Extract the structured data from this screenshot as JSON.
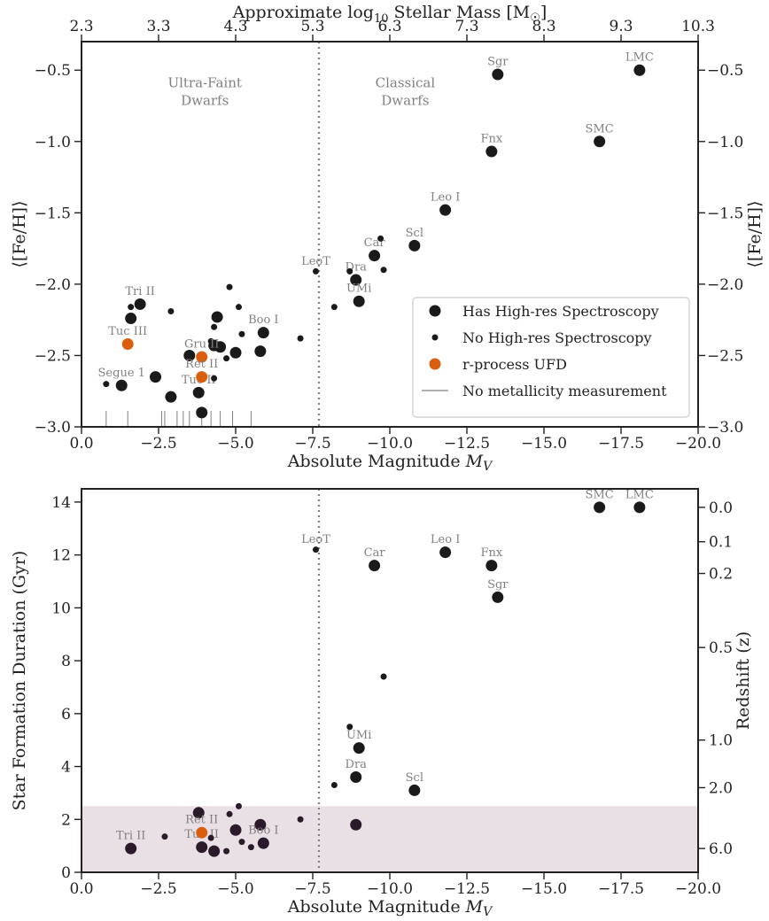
{
  "colors": {
    "big_marker": "#1a1a1a",
    "small_marker": "#1a1a1a",
    "rprocess": "#d95f0e",
    "label": "#808080",
    "divider": "#808080",
    "shade": "#e9e0e6",
    "bottom_marker_shaded": "#2a1a2a",
    "legend_line": "#808080"
  },
  "chart_data": [
    {
      "type": "scatter",
      "title": "",
      "xlabel": "Absolute Magnitude M_V",
      "ylabel": "⟨[Fe/H]⟩",
      "ylabel_right": "⟨[Fe/H]⟩",
      "top_axis_label": "Approximate log₁₀ Stellar Mass [M☉]",
      "xlim": [
        0.0,
        -20.0
      ],
      "ylim": [
        -3.0,
        -0.3
      ],
      "x_ticks": [
        0.0,
        -2.5,
        -5.0,
        -7.5,
        -10.0,
        -12.5,
        -15.0,
        -17.5,
        -20.0
      ],
      "x_tick_labels": [
        "0.0",
        "−2.5",
        "−5.0",
        "−7.5",
        "−10.0",
        "−12.5",
        "−15.0",
        "−17.5",
        "−20.0"
      ],
      "y_ticks": [
        -3.0,
        -2.5,
        -2.0,
        -1.5,
        -1.0,
        -0.5
      ],
      "y_tick_labels": [
        "−3.0",
        "−2.5",
        "−2.0",
        "−1.5",
        "−1.0",
        "−0.5"
      ],
      "top_ticks_mv": [
        0.0,
        -2.5,
        -5.0,
        -7.5,
        -10.0,
        -12.5,
        -15.0,
        -17.5,
        -20.0
      ],
      "top_tick_labels": [
        "2.3",
        "3.3",
        "4.3",
        "5.3",
        "6.3",
        "7.3",
        "8.3",
        "9.3",
        "10.3"
      ],
      "divider_mv": -7.7,
      "region_labels": [
        {
          "text": [
            "Ultra-Faint",
            "Dwarfs"
          ],
          "x": -4.0,
          "y": -0.62
        },
        {
          "text": [
            "Classical",
            "Dwarfs"
          ],
          "x": -10.5,
          "y": -0.62
        }
      ],
      "legend": {
        "position": "lower-right",
        "entries": [
          "Has High-res Spectroscopy",
          "No High-res Spectroscopy",
          "r-process UFD",
          "No metallicity measurement"
        ]
      },
      "series": [
        {
          "name": "Has High-res Spectroscopy",
          "points": [
            {
              "x": -18.1,
              "y": -0.5,
              "label": "LMC"
            },
            {
              "x": -13.5,
              "y": -0.53,
              "label": "Sgr"
            },
            {
              "x": -16.8,
              "y": -1.0,
              "label": "SMC"
            },
            {
              "x": -13.3,
              "y": -1.07,
              "label": "Fnx"
            },
            {
              "x": -11.8,
              "y": -1.48,
              "label": "Leo I"
            },
            {
              "x": -10.8,
              "y": -1.73,
              "label": "Scl"
            },
            {
              "x": -9.5,
              "y": -1.8,
              "label": "Car"
            },
            {
              "x": -8.9,
              "y": -1.97,
              "label": "Dra"
            },
            {
              "x": -9.0,
              "y": -2.12,
              "label": "UMi"
            },
            {
              "x": -5.9,
              "y": -2.34,
              "label": "Boo I"
            },
            {
              "x": -1.9,
              "y": -2.14,
              "label": "Tri II"
            },
            {
              "x": -1.6,
              "y": -2.24,
              "label": ""
            },
            {
              "x": -1.3,
              "y": -2.71,
              "label": "Segue 1"
            },
            {
              "x": -2.4,
              "y": -2.65,
              "label": ""
            },
            {
              "x": -2.9,
              "y": -2.79,
              "label": ""
            },
            {
              "x": -3.5,
              "y": -2.5,
              "label": ""
            },
            {
              "x": -3.8,
              "y": -2.76,
              "label": "Tuc II"
            },
            {
              "x": -3.9,
              "y": -2.9,
              "label": ""
            },
            {
              "x": -4.3,
              "y": -2.43,
              "label": ""
            },
            {
              "x": -4.5,
              "y": -2.44,
              "label": ""
            },
            {
              "x": -4.4,
              "y": -2.23,
              "label": ""
            },
            {
              "x": -5.0,
              "y": -2.48,
              "label": ""
            },
            {
              "x": -5.8,
              "y": -2.47,
              "label": ""
            }
          ]
        },
        {
          "name": "No High-res Spectroscopy",
          "points": [
            {
              "x": -7.6,
              "y": -1.91,
              "label": "LeoT"
            },
            {
              "x": -9.7,
              "y": -1.68,
              "label": ""
            },
            {
              "x": -9.8,
              "y": -1.9,
              "label": ""
            },
            {
              "x": -8.7,
              "y": -1.91,
              "label": ""
            },
            {
              "x": -8.2,
              "y": -2.16,
              "label": ""
            },
            {
              "x": -7.1,
              "y": -2.38,
              "label": ""
            },
            {
              "x": -4.8,
              "y": -2.02,
              "label": ""
            },
            {
              "x": -5.1,
              "y": -2.16,
              "label": ""
            },
            {
              "x": -5.2,
              "y": -2.35,
              "label": ""
            },
            {
              "x": -4.2,
              "y": -2.4,
              "label": ""
            },
            {
              "x": -4.3,
              "y": -2.3,
              "label": ""
            },
            {
              "x": -4.7,
              "y": -2.52,
              "label": ""
            },
            {
              "x": -4.3,
              "y": -2.66,
              "label": ""
            },
            {
              "x": -2.9,
              "y": -2.19,
              "label": ""
            },
            {
              "x": -1.6,
              "y": -2.16,
              "label": ""
            },
            {
              "x": -0.8,
              "y": -2.7,
              "label": ""
            }
          ]
        },
        {
          "name": "r-process UFD",
          "points": [
            {
              "x": -1.5,
              "y": -2.42,
              "label": "Tuc III"
            },
            {
              "x": -3.9,
              "y": -2.51,
              "label": "Gru II"
            },
            {
              "x": -3.9,
              "y": -2.65,
              "label": "Ret II"
            }
          ]
        },
        {
          "name": "No metallicity measurement",
          "rug_x": [
            -0.8,
            -1.5,
            -2.6,
            -2.7,
            -3.1,
            -3.3,
            -3.5,
            -3.9,
            -4.2,
            -4.5,
            -4.9,
            -5.5
          ]
        }
      ]
    },
    {
      "type": "scatter",
      "title": "",
      "xlabel": "Absolute Magnitude M_V",
      "ylabel": "Star Formation Duration (Gyr)",
      "ylabel_right": "Redshift (z)",
      "xlim": [
        0.0,
        -20.0
      ],
      "ylim": [
        0.0,
        14.5
      ],
      "x_ticks": [
        0.0,
        -2.5,
        -5.0,
        -7.5,
        -10.0,
        -12.5,
        -15.0,
        -17.5,
        -20.0
      ],
      "x_tick_labels": [
        "0.0",
        "−2.5",
        "−5.0",
        "−7.5",
        "−10.0",
        "−12.5",
        "−15.0",
        "−17.5",
        "−20.0"
      ],
      "y_ticks": [
        0,
        2,
        4,
        6,
        8,
        10,
        12,
        14
      ],
      "y_tick_labels": [
        "0",
        "2",
        "4",
        "6",
        "8",
        "10",
        "12",
        "14"
      ],
      "redshift_ticks": [
        {
          "label": "0.0",
          "y": 13.8
        },
        {
          "label": "0.1",
          "y": 12.5
        },
        {
          "label": "0.2",
          "y": 11.3
        },
        {
          "label": "0.5",
          "y": 8.5
        },
        {
          "label": "1.0",
          "y": 5.0
        },
        {
          "label": "2.0",
          "y": 3.2
        },
        {
          "label": "6.0",
          "y": 0.9
        }
      ],
      "shaded_band": [
        0.0,
        2.5
      ],
      "divider_mv": -7.7,
      "series": [
        {
          "name": "Has High-res Spectroscopy",
          "points": [
            {
              "x": -16.8,
              "y": 13.8,
              "label": "SMC"
            },
            {
              "x": -18.1,
              "y": 13.8,
              "label": "LMC"
            },
            {
              "x": -11.8,
              "y": 12.1,
              "label": "Leo I"
            },
            {
              "x": -9.5,
              "y": 11.6,
              "label": "Car"
            },
            {
              "x": -13.3,
              "y": 11.6,
              "label": "Fnx"
            },
            {
              "x": -13.5,
              "y": 10.4,
              "label": "Sgr"
            },
            {
              "x": -9.0,
              "y": 4.7,
              "label": "UMi"
            },
            {
              "x": -8.9,
              "y": 3.6,
              "label": "Dra"
            },
            {
              "x": -10.8,
              "y": 3.1,
              "label": "Scl"
            },
            {
              "x": -8.9,
              "y": 1.8,
              "label": ""
            },
            {
              "x": -1.6,
              "y": 0.9,
              "label": "Tri II"
            },
            {
              "x": -3.8,
              "y": 2.25,
              "label": ""
            },
            {
              "x": -3.9,
              "y": 0.95,
              "label": "Tuc II"
            },
            {
              "x": -4.3,
              "y": 0.8,
              "label": ""
            },
            {
              "x": -5.0,
              "y": 1.6,
              "label": ""
            },
            {
              "x": -5.8,
              "y": 1.8,
              "label": ""
            },
            {
              "x": -5.9,
              "y": 1.1,
              "label": "Boo I"
            }
          ]
        },
        {
          "name": "No High-res Spectroscopy",
          "points": [
            {
              "x": -7.6,
              "y": 12.2,
              "label": "LeoT"
            },
            {
              "x": -9.8,
              "y": 7.4,
              "label": ""
            },
            {
              "x": -8.7,
              "y": 5.5,
              "label": ""
            },
            {
              "x": -8.2,
              "y": 3.3,
              "label": ""
            },
            {
              "x": -7.1,
              "y": 2.0,
              "label": ""
            },
            {
              "x": -2.7,
              "y": 1.35,
              "label": ""
            },
            {
              "x": -4.2,
              "y": 1.3,
              "label": ""
            },
            {
              "x": -4.8,
              "y": 2.2,
              "label": ""
            },
            {
              "x": -5.1,
              "y": 2.5,
              "label": ""
            },
            {
              "x": -5.2,
              "y": 1.15,
              "label": ""
            },
            {
              "x": -4.7,
              "y": 0.8,
              "label": ""
            },
            {
              "x": -5.5,
              "y": 0.95,
              "label": ""
            }
          ]
        },
        {
          "name": "r-process UFD",
          "points": [
            {
              "x": -3.9,
              "y": 1.5,
              "label": "Ret II"
            }
          ]
        }
      ]
    }
  ]
}
